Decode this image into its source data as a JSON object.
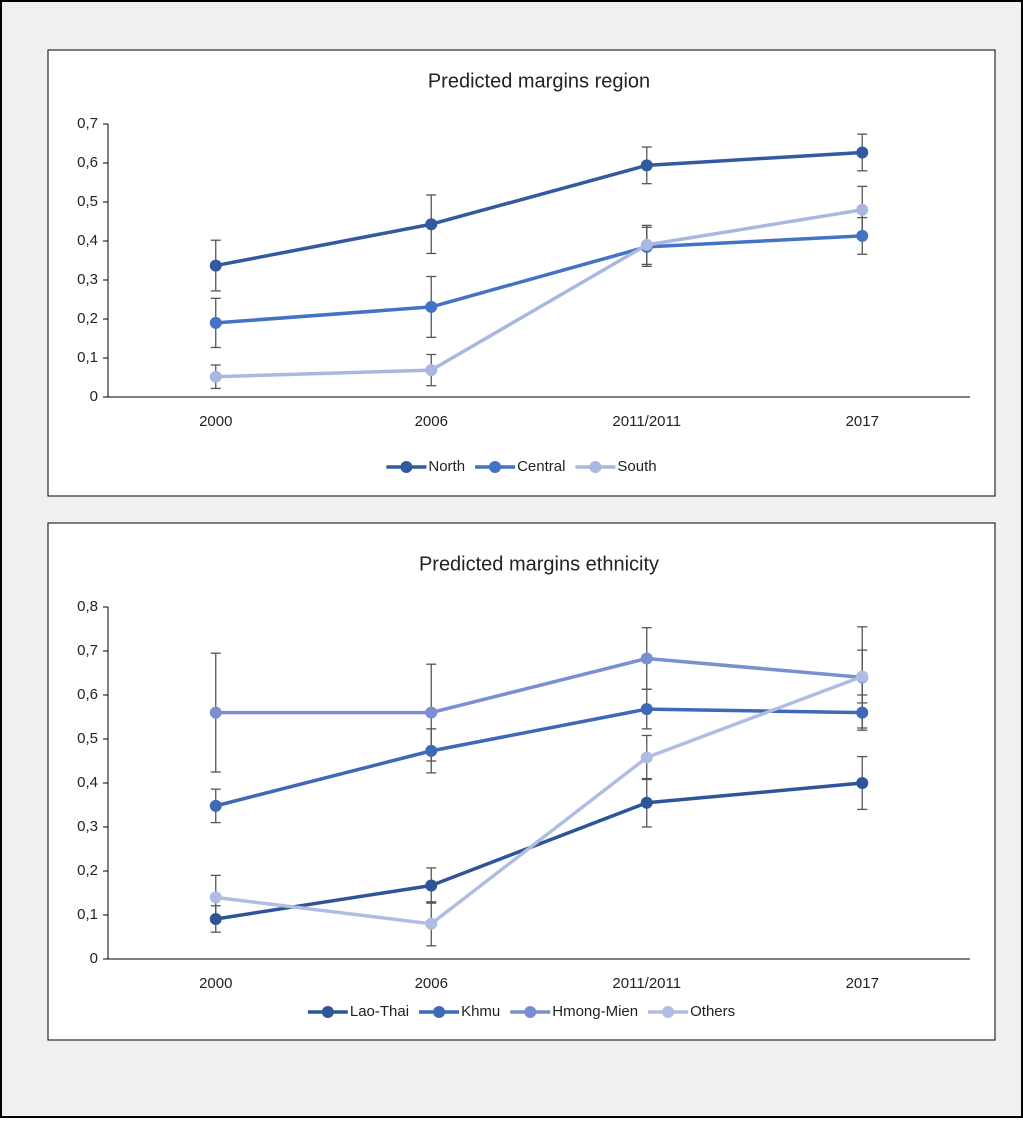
{
  "chart_data": [
    {
      "type": "line",
      "title": "Predicted margins region",
      "categories": [
        "2000",
        "2006",
        "2011/2011",
        "2017"
      ],
      "ylim": [
        0,
        0.7
      ],
      "yticks": [
        0,
        {
          "value": 0.1,
          "label": "0,1"
        },
        {
          "value": 0.2,
          "label": "0,2"
        },
        {
          "value": 0.3,
          "label": "0,3"
        },
        {
          "value": 0.4,
          "label": "0,4"
        },
        {
          "value": 0.5,
          "label": "0,5"
        },
        {
          "value": 0.6,
          "label": "0,6"
        },
        {
          "value": 0.7,
          "label": "0,7"
        }
      ],
      "legend": "bottom",
      "series": [
        {
          "name": "North",
          "color": "#335aa0",
          "values": [
            0.337,
            0.443,
            0.594,
            0.627
          ],
          "errors": [
            0.065,
            0.075,
            0.047,
            0.047
          ]
        },
        {
          "name": "Central",
          "color": "#4472c4",
          "values": [
            0.19,
            0.231,
            0.385,
            0.413
          ],
          "errors": [
            0.063,
            0.078,
            0.05,
            0.047
          ]
        },
        {
          "name": "South",
          "color": "#a9b8e0",
          "values": [
            0.052,
            0.069,
            0.39,
            0.48
          ],
          "errors": [
            0.03,
            0.04,
            0.05,
            0.06
          ]
        }
      ]
    },
    {
      "type": "line",
      "title": "Predicted margins ethnicity",
      "categories": [
        "2000",
        "2006",
        "2011/2011",
        "2017"
      ],
      "ylim": [
        0,
        0.8
      ],
      "yticks": [
        0,
        {
          "value": 0.1,
          "label": "0,1"
        },
        {
          "value": 0.2,
          "label": "0,2"
        },
        {
          "value": 0.3,
          "label": "0,3"
        },
        {
          "value": 0.4,
          "label": "0,4"
        },
        {
          "value": 0.5,
          "label": "0,5"
        },
        {
          "value": 0.6,
          "label": "0,6"
        },
        {
          "value": 0.7,
          "label": "0,7"
        },
        {
          "value": 0.8,
          "label": "0,8"
        }
      ],
      "legend": "bottom",
      "series": [
        {
          "name": "Lao-Thai",
          "color": "#2e5597",
          "values": [
            0.091,
            0.167,
            0.355,
            0.4
          ],
          "errors": [
            0.03,
            0.04,
            0.055,
            0.06
          ]
        },
        {
          "name": "Khmu",
          "color": "#3f68b5",
          "values": [
            0.348,
            0.473,
            0.568,
            0.56
          ],
          "errors": [
            0.038,
            0.05,
            0.045,
            0.04
          ]
        },
        {
          "name": "Hmong-Mien",
          "color": "#7a8fd0",
          "values": [
            0.56,
            0.56,
            0.683,
            0.64
          ],
          "errors": [
            0.135,
            0.11,
            0.07,
            0.115
          ]
        },
        {
          "name": "Others",
          "color": "#b0bde3",
          "values": [
            0.14,
            0.08,
            0.458,
            0.642
          ],
          "errors": [
            0.05,
            0.05,
            0.05,
            0.06
          ]
        }
      ]
    }
  ]
}
